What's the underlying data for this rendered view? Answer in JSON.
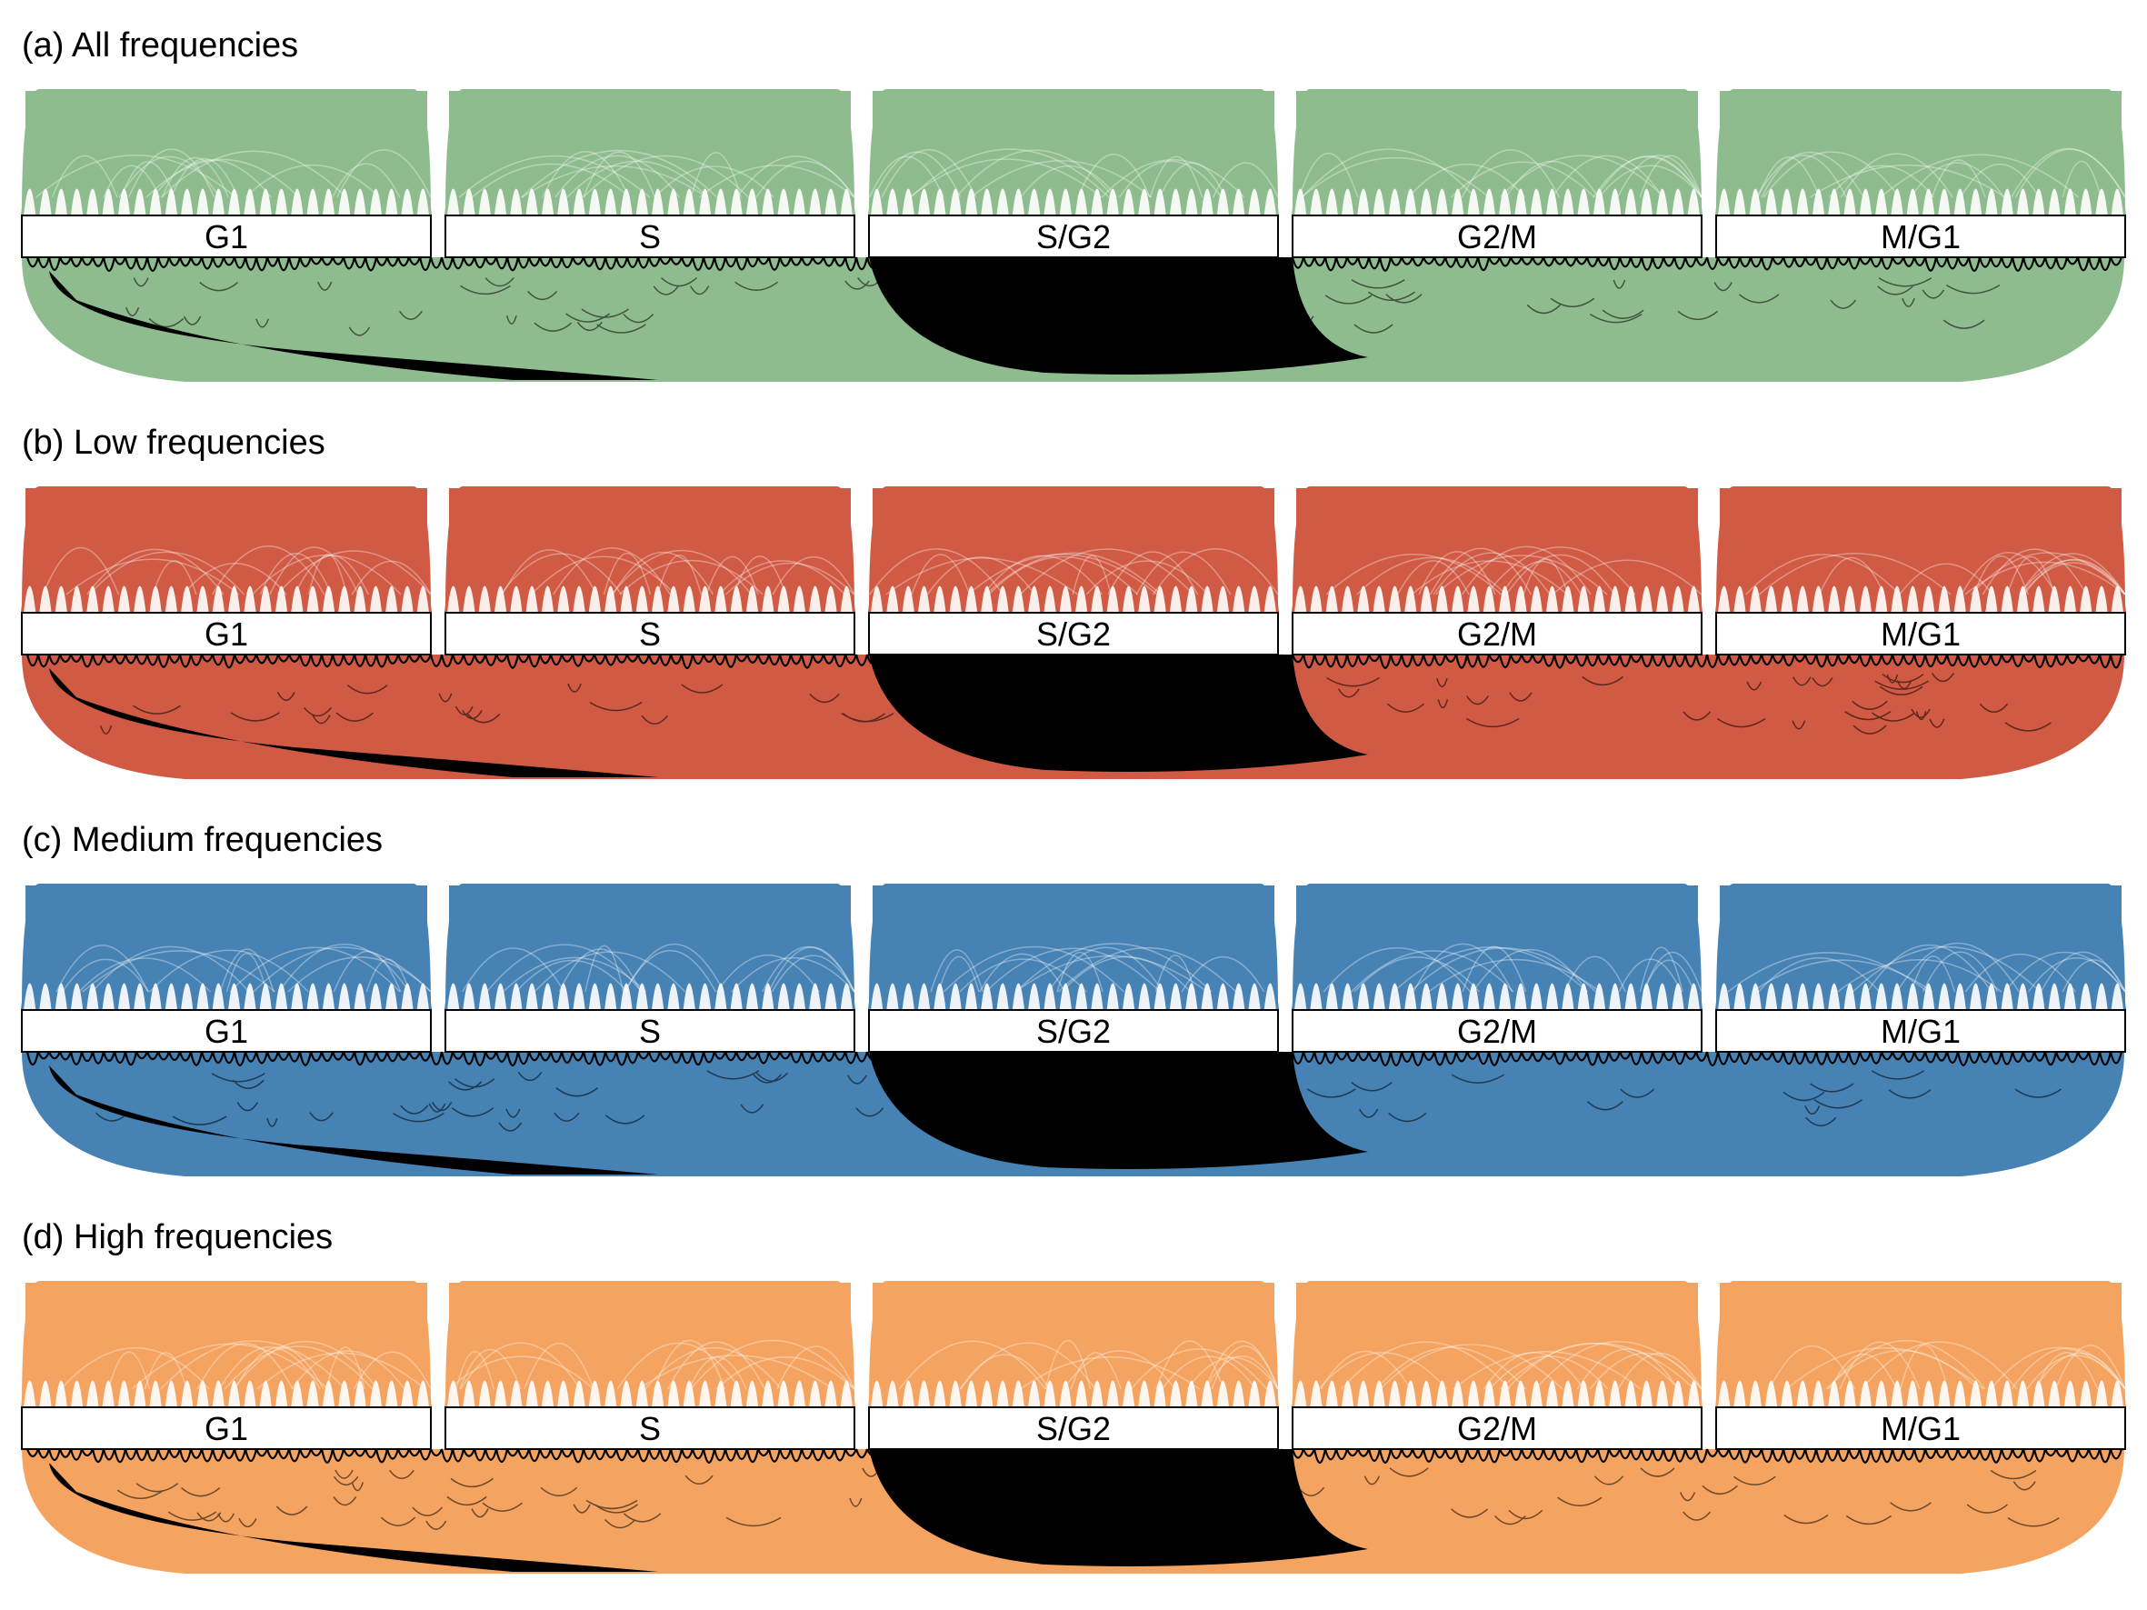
{
  "panels": [
    {
      "label": "(a) All frequencies",
      "color": "#8fbc8f"
    },
    {
      "label": "(b) Low frequencies",
      "color": "#d05a43"
    },
    {
      "label": "(c) Medium frequencies",
      "color": "#4682b4"
    },
    {
      "label": "(d) High frequencies",
      "color": "#f4a460"
    }
  ],
  "phases": [
    "G1",
    "S",
    "S/G2",
    "G2/M",
    "M/G1"
  ],
  "highlight_color": "#000000"
}
